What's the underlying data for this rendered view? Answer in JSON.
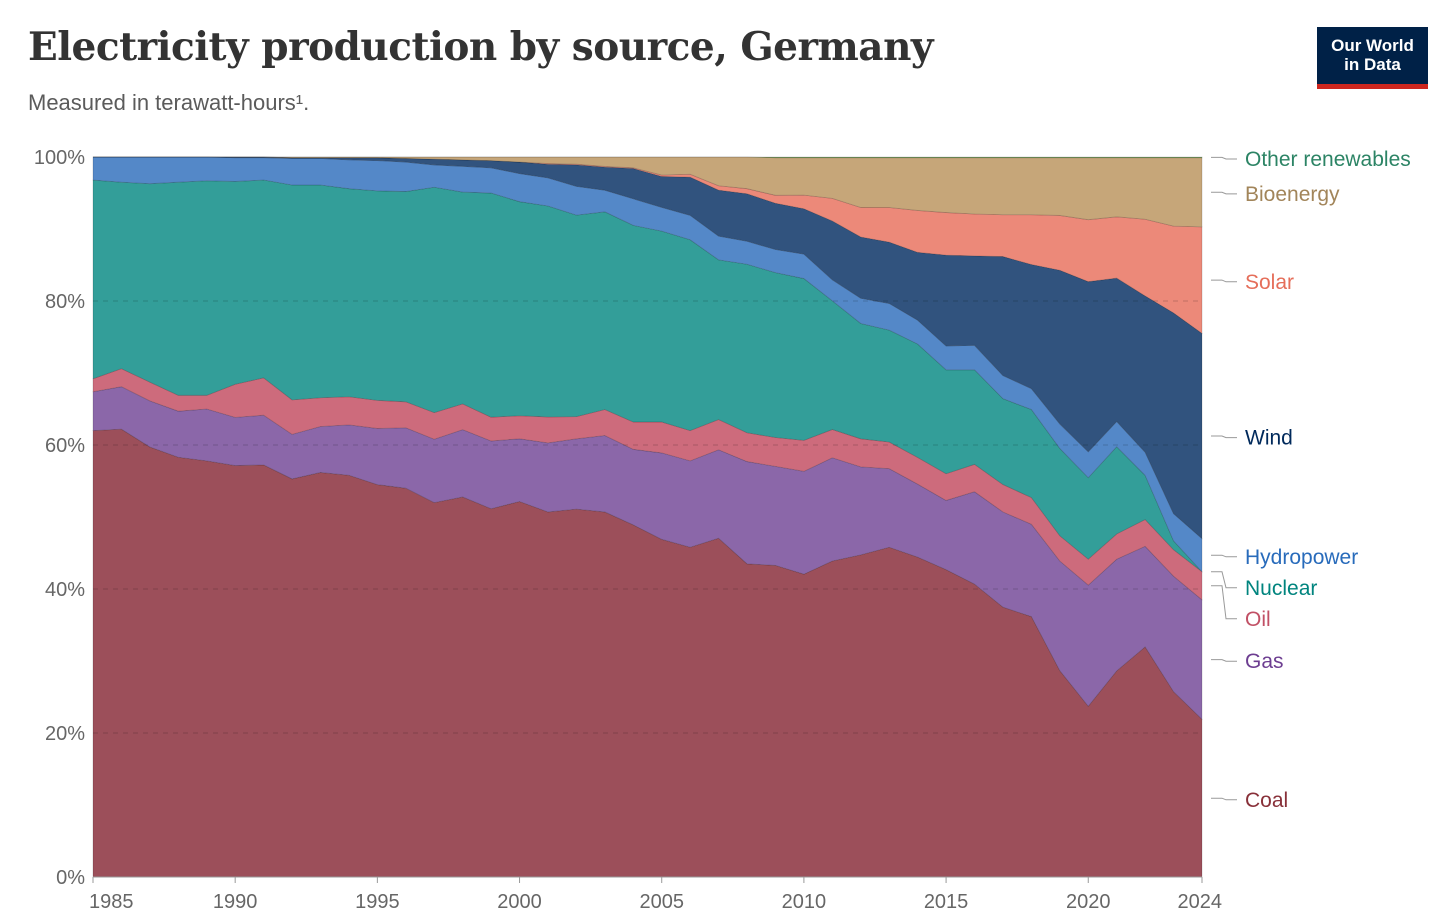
{
  "header": {
    "title": "Electricity production by source, Germany",
    "subtitle": "Measured in terawatt-hours¹.",
    "logo_line1": "Our World",
    "logo_line2": "in Data"
  },
  "chart_data": {
    "type": "area",
    "stacked": true,
    "normalized": true,
    "title": "Electricity production by source, Germany",
    "subtitle": "Measured in terawatt-hours¹.",
    "xlabel": "",
    "ylabel": "",
    "xlim": [
      1985,
      2024
    ],
    "ylim": [
      0,
      100
    ],
    "x_ticks": [
      1985,
      1990,
      1995,
      2000,
      2005,
      2010,
      2015,
      2020,
      2024
    ],
    "x_tick_labels": [
      "1985",
      "1990",
      "1995",
      "2000",
      "2005",
      "2010",
      "2015",
      "2020",
      "2024"
    ],
    "y_ticks": [
      0,
      20,
      40,
      60,
      80,
      100
    ],
    "y_tick_labels": [
      "0%",
      "20%",
      "40%",
      "60%",
      "80%",
      "100%"
    ],
    "grid": "horizontal-dashed",
    "legend_position": "right",
    "x": [
      1985,
      1986,
      1987,
      1988,
      1989,
      1990,
      1991,
      1992,
      1993,
      1994,
      1995,
      1996,
      1997,
      1998,
      1999,
      2000,
      2001,
      2002,
      2003,
      2004,
      2005,
      2006,
      2007,
      2008,
      2009,
      2010,
      2011,
      2012,
      2013,
      2014,
      2015,
      2016,
      2017,
      2018,
      2019,
      2020,
      2021,
      2022,
      2023,
      2024
    ],
    "series": [
      {
        "name": "Coal",
        "color": "#9c4f5a",
        "label_color": "#883039",
        "values": [
          62.0,
          62.2,
          59.6,
          58.3,
          57.8,
          57.2,
          57.3,
          55.4,
          56.3,
          55.8,
          54.5,
          54.0,
          52.0,
          53.1,
          51.1,
          52.1,
          50.7,
          51.3,
          50.6,
          48.9,
          46.9,
          45.8,
          47.1,
          43.5,
          43.1,
          42.1,
          43.5,
          44.7,
          45.7,
          44.3,
          42.6,
          40.6,
          37.4,
          36.1,
          28.6,
          23.7,
          28.6,
          31.8,
          25.2,
          21.9
        ]
      },
      {
        "name": "Gas",
        "color": "#8b67a9",
        "label_color": "#6d3e91",
        "values": [
          5.4,
          5.9,
          6.4,
          6.4,
          7.2,
          6.7,
          6.9,
          6.2,
          6.4,
          7.0,
          7.8,
          8.4,
          8.8,
          9.4,
          9.4,
          8.7,
          9.6,
          9.8,
          10.6,
          10.5,
          12.0,
          12.0,
          12.3,
          14.2,
          13.7,
          14.3,
          14.2,
          12.2,
          10.9,
          10.1,
          9.6,
          12.8,
          13.2,
          12.8,
          15.2,
          16.8,
          15.5,
          13.9,
          15.7,
          16.6
        ]
      },
      {
        "name": "Oil",
        "color": "#cd6b7c",
        "label_color": "#c15065",
        "values": [
          1.8,
          2.5,
          2.6,
          2.2,
          1.9,
          4.6,
          5.2,
          4.8,
          4.0,
          3.9,
          3.9,
          3.6,
          3.7,
          3.6,
          3.3,
          3.2,
          3.6,
          3.1,
          3.6,
          3.8,
          4.3,
          4.2,
          4.2,
          4.0,
          4.0,
          4.3,
          3.9,
          3.9,
          3.7,
          3.7,
          3.7,
          3.8,
          3.8,
          3.7,
          3.5,
          3.6,
          3.5,
          3.7,
          3.6,
          3.9
        ]
      },
      {
        "name": "Nuclear",
        "color": "#339e99",
        "label_color": "#00847e",
        "values": [
          27.6,
          25.9,
          27.5,
          29.6,
          29.8,
          28.2,
          27.5,
          29.9,
          29.6,
          28.9,
          29.1,
          29.2,
          31.3,
          29.6,
          31.1,
          29.7,
          29.3,
          28.1,
          27.4,
          27.3,
          26.5,
          26.5,
          22.2,
          23.4,
          22.8,
          22.5,
          17.7,
          16.0,
          15.5,
          15.7,
          14.4,
          13.1,
          11.9,
          12.2,
          12.1,
          11.3,
          12.1,
          6.1,
          1.2,
          0.0
        ]
      },
      {
        "name": "Hydropower",
        "color": "#5488c8",
        "label_color": "#286bbb",
        "values": [
          3.2,
          3.5,
          3.7,
          3.5,
          3.3,
          3.3,
          3.1,
          3.7,
          3.7,
          4.0,
          4.2,
          4.1,
          3.1,
          3.6,
          3.5,
          3.9,
          3.9,
          4.0,
          3.0,
          3.7,
          3.3,
          3.4,
          3.3,
          3.2,
          3.2,
          3.4,
          2.9,
          3.5,
          3.7,
          3.3,
          3.3,
          3.4,
          3.2,
          2.9,
          3.4,
          3.6,
          3.5,
          3.2,
          3.7,
          4.6
        ]
      },
      {
        "name": "Wind",
        "color": "#31537e",
        "label_color": "#00295b",
        "values": [
          0.0,
          0.0,
          0.0,
          0.0,
          0.0,
          0.1,
          0.1,
          0.1,
          0.1,
          0.3,
          0.4,
          0.5,
          0.8,
          0.9,
          1.0,
          1.6,
          1.9,
          3.0,
          3.2,
          4.2,
          4.3,
          5.3,
          6.4,
          6.6,
          6.4,
          6.3,
          8.1,
          8.5,
          8.5,
          9.4,
          12.6,
          12.4,
          16.5,
          17.2,
          21.3,
          23.6,
          19.9,
          21.6,
          27.3,
          28.5
        ]
      },
      {
        "name": "Solar",
        "color": "#ec8979",
        "label_color": "#e56e5a",
        "values": [
          0.0,
          0.0,
          0.0,
          0.0,
          0.0,
          0.0,
          0.0,
          0.0,
          0.0,
          0.0,
          0.0,
          0.0,
          0.0,
          0.0,
          0.0,
          0.0,
          0.1,
          0.1,
          0.1,
          0.1,
          0.2,
          0.4,
          0.6,
          0.7,
          1.1,
          1.9,
          3.1,
          4.1,
          4.8,
          5.8,
          5.9,
          5.8,
          5.8,
          6.9,
          7.6,
          8.6,
          8.5,
          10.6,
          11.8,
          14.8
        ]
      },
      {
        "name": "Bioenergy",
        "color": "#c6a679",
        "label_color": "#a2855a",
        "values": [
          0.0,
          0.0,
          0.0,
          0.0,
          0.0,
          0.0,
          0.0,
          0.1,
          0.1,
          0.1,
          0.1,
          0.2,
          0.3,
          0.4,
          0.5,
          0.7,
          0.9,
          1.0,
          1.3,
          1.5,
          2.5,
          2.4,
          4.0,
          4.4,
          5.2,
          5.2,
          5.6,
          6.9,
          6.9,
          7.3,
          7.6,
          7.8,
          7.9,
          7.9,
          8.0,
          8.6,
          8.2,
          8.5,
          9.3,
          9.6
        ]
      },
      {
        "name": "Other renewables",
        "color": "#6d9a52",
        "label_color": "#2c8465",
        "values": [
          0.0,
          0.0,
          0.0,
          0.0,
          0.0,
          0.0,
          0.0,
          0.0,
          0.0,
          0.0,
          0.0,
          0.0,
          0.0,
          0.0,
          0.0,
          0.0,
          0.0,
          0.0,
          0.0,
          0.0,
          0.0,
          0.0,
          0.0,
          0.0,
          0.1,
          0.1,
          0.1,
          0.1,
          0.1,
          0.1,
          0.1,
          0.1,
          0.1,
          0.1,
          0.1,
          0.1,
          0.1,
          0.1,
          0.1,
          0.1
        ]
      }
    ]
  }
}
